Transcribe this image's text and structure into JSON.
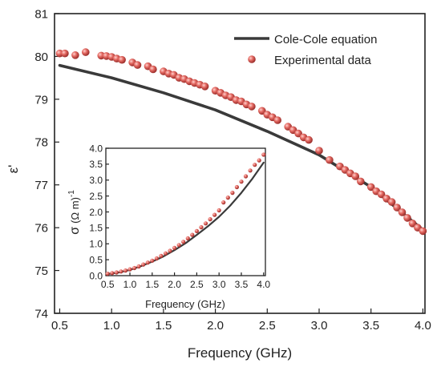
{
  "chart_data": [
    {
      "type": "scatter",
      "xlabel": "Frequency (GHz)",
      "ylabel": "ε'",
      "xlim": [
        0.45,
        4.02
      ],
      "ylim": [
        74,
        81
      ],
      "xticks": [
        "0.5",
        "1.0",
        "1.5",
        "2.0",
        "2.5",
        "3.0",
        "3.5",
        "4.0"
      ],
      "yticks": [
        "74",
        "75",
        "76",
        "77",
        "78",
        "79",
        "80",
        "81"
      ],
      "legend": "top-right",
      "series": [
        {
          "name": "Cole-Cole equation",
          "kind": "line",
          "color": "#3a3a3a",
          "x": [
            0.5,
            1.0,
            1.5,
            2.0,
            2.5,
            3.0,
            3.5,
            4.0
          ],
          "y": [
            79.79,
            79.5,
            79.15,
            78.75,
            78.25,
            77.7,
            76.95,
            75.95
          ]
        },
        {
          "name": "Experimental data",
          "kind": "markers",
          "color": "#d9534f",
          "x": [
            0.5,
            0.55,
            0.65,
            0.75,
            0.9,
            0.95,
            1.0,
            1.05,
            1.1,
            1.2,
            1.25,
            1.35,
            1.4,
            1.5,
            1.55,
            1.6,
            1.65,
            1.7,
            1.75,
            1.8,
            1.85,
            1.9,
            2.0,
            2.05,
            2.1,
            2.15,
            2.2,
            2.25,
            2.3,
            2.35,
            2.45,
            2.5,
            2.55,
            2.6,
            2.7,
            2.75,
            2.8,
            2.85,
            2.9,
            3.0,
            3.1,
            3.2,
            3.25,
            3.3,
            3.35,
            3.4,
            3.5,
            3.55,
            3.6,
            3.65,
            3.7,
            3.75,
            3.8,
            3.85,
            3.9,
            3.95,
            4.0
          ],
          "y": [
            80.07,
            80.07,
            80.03,
            80.1,
            80.02,
            80.01,
            79.99,
            79.95,
            79.92,
            79.86,
            79.8,
            79.77,
            79.7,
            79.65,
            79.6,
            79.57,
            79.5,
            79.47,
            79.42,
            79.38,
            79.34,
            79.3,
            79.2,
            79.15,
            79.09,
            79.05,
            78.98,
            78.95,
            78.88,
            78.83,
            78.73,
            78.64,
            78.58,
            78.51,
            78.36,
            78.28,
            78.2,
            78.11,
            78.05,
            77.8,
            77.58,
            77.43,
            77.35,
            77.27,
            77.2,
            77.08,
            76.95,
            76.85,
            76.78,
            76.68,
            76.6,
            76.47,
            76.36,
            76.23,
            76.1,
            76.0,
            75.92
          ]
        }
      ]
    },
    {
      "type": "scatter",
      "inset": true,
      "xlabel": "Frequency (GHz)",
      "ylabel_parts": {
        "symbol": "σ",
        "unit": "(Ω m)",
        "exponent": "-1"
      },
      "xlim": [
        0.46,
        4.04
      ],
      "ylim": [
        0,
        4
      ],
      "xticks": [
        "0.5",
        "1.0",
        "1.5",
        "2.0",
        "2.5",
        "3.0",
        "3.5",
        "4.0"
      ],
      "yticks": [
        "0.0",
        "0.5",
        "1.0",
        "1.5",
        "2.0",
        "2.5",
        "3.0",
        "3.5",
        "4.0"
      ],
      "series": [
        {
          "kind": "line",
          "color": "#3a3a3a",
          "x": [
            0.5,
            0.75,
            1.0,
            1.25,
            1.5,
            1.75,
            2.0,
            2.25,
            2.5,
            2.75,
            3.0,
            3.25,
            3.5,
            3.75,
            4.0
          ],
          "y": [
            0.05,
            0.1,
            0.18,
            0.3,
            0.44,
            0.6,
            0.8,
            1.02,
            1.28,
            1.55,
            1.85,
            2.2,
            2.6,
            3.05,
            3.55
          ]
        },
        {
          "kind": "markers",
          "color": "#d9534f",
          "x": [
            0.5,
            0.6,
            0.7,
            0.8,
            0.9,
            1.0,
            1.1,
            1.2,
            1.3,
            1.4,
            1.5,
            1.6,
            1.7,
            1.8,
            1.9,
            2.0,
            2.1,
            2.2,
            2.3,
            2.4,
            2.5,
            2.6,
            2.7,
            2.8,
            2.9,
            3.0,
            3.1,
            3.2,
            3.3,
            3.4,
            3.5,
            3.6,
            3.7,
            3.8,
            3.9,
            4.0
          ],
          "y": [
            0.06,
            0.08,
            0.1,
            0.13,
            0.16,
            0.2,
            0.24,
            0.29,
            0.35,
            0.41,
            0.47,
            0.54,
            0.62,
            0.7,
            0.78,
            0.87,
            0.96,
            1.06,
            1.17,
            1.28,
            1.4,
            1.52,
            1.64,
            1.77,
            1.91,
            2.05,
            2.3,
            2.45,
            2.6,
            2.78,
            2.95,
            3.12,
            3.3,
            3.48,
            3.62,
            3.8
          ]
        }
      ]
    }
  ]
}
